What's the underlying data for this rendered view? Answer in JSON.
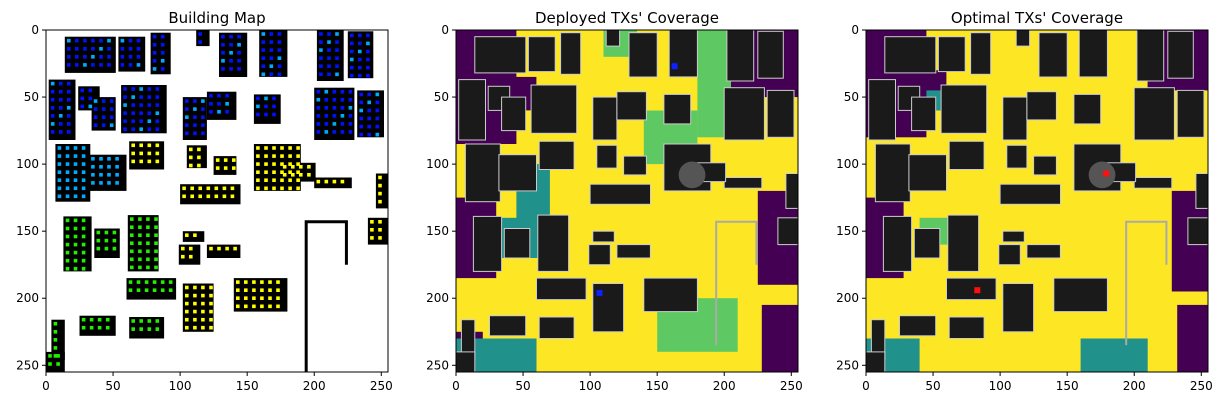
{
  "chart_data": [
    {
      "type": "heatmap",
      "title": "Building Map",
      "xlim": [
        0,
        255
      ],
      "ylim": [
        255,
        0
      ],
      "xticks": [
        0,
        50,
        100,
        150,
        200,
        250
      ],
      "yticks": [
        0,
        50,
        100,
        150,
        200,
        250
      ],
      "colors": {
        "background": "#ffffff",
        "building": "#000000",
        "markers": [
          "#0011ff",
          "#00aaff",
          "#22ee00",
          "#ffff00"
        ]
      }
    },
    {
      "type": "heatmap",
      "title": "Deployed TXs' Coverage",
      "xlim": [
        0,
        255
      ],
      "ylim": [
        255,
        0
      ],
      "xticks": [
        0,
        50,
        100,
        150,
        200,
        250
      ],
      "yticks": [
        0,
        50,
        100,
        150,
        200,
        250
      ],
      "colors": {
        "low": "#440154",
        "mid1": "#21918c",
        "mid2": "#5ec962",
        "high": "#fde725",
        "building": "#1a1a1a"
      },
      "transmitters": [
        {
          "x": 163,
          "y": 27
        },
        {
          "x": 107,
          "y": 196
        }
      ],
      "tx_color": "#1020ff"
    },
    {
      "type": "heatmap",
      "title": "Optimal TXs' Coverage",
      "xlim": [
        0,
        255
      ],
      "ylim": [
        255,
        0
      ],
      "xticks": [
        0,
        50,
        100,
        150,
        200,
        250
      ],
      "yticks": [
        0,
        50,
        100,
        150,
        200,
        250
      ],
      "colors": {
        "low": "#440154",
        "mid1": "#21918c",
        "mid2": "#5ec962",
        "high": "#fde725",
        "building": "#1a1a1a"
      },
      "transmitters": [
        {
          "x": 179,
          "y": 107
        },
        {
          "x": 83,
          "y": 194
        }
      ],
      "tx_color": "#ff1010"
    }
  ]
}
